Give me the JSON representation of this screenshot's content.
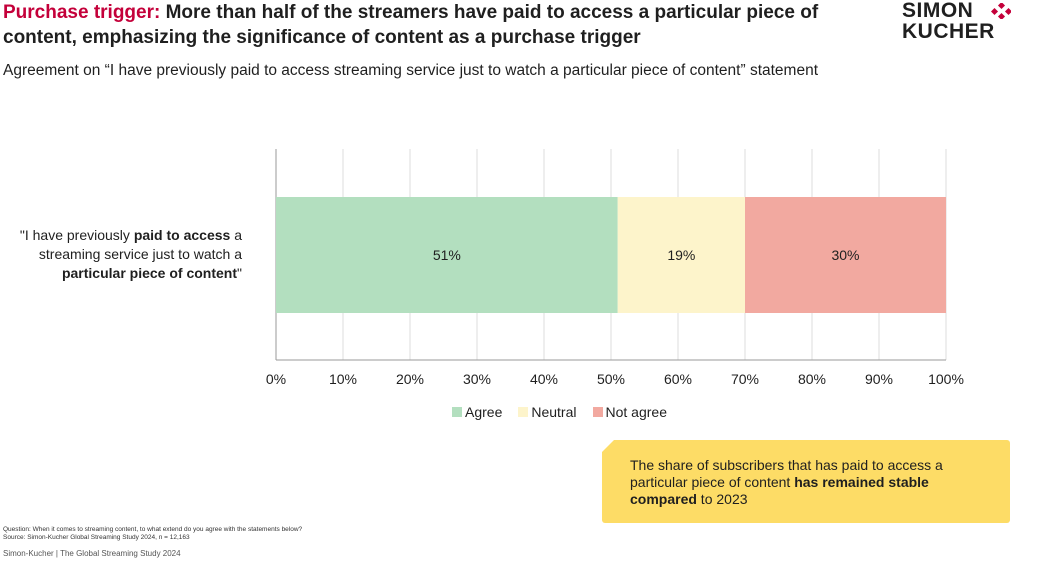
{
  "title": {
    "accent": "Purchase trigger:",
    "rest": " More than half of the streamers have paid to access a particular piece of content, emphasizing the significance of content as a purchase trigger"
  },
  "logo": {
    "line1": "SIMON",
    "line2": "KUCHER",
    "mark_color": "#c4003a"
  },
  "subtitle": "Agreement on “I have previously paid to access streaming service just to watch a particular piece of content” statement",
  "row_label": {
    "p1": "\"I have previously ",
    "b1": "paid to access",
    "p2": " a streaming service just to watch a ",
    "b2": "particular piece of content",
    "p3": "\""
  },
  "chart_data": {
    "type": "bar",
    "orientation": "horizontal",
    "stacked": true,
    "categories": [
      "\"I have previously paid to access a streaming service just to watch a particular piece of content\""
    ],
    "series": [
      {
        "name": "Agree",
        "values": [
          51
        ],
        "label": "51%",
        "color": "#b3dfbf"
      },
      {
        "name": "Neutral",
        "values": [
          19
        ],
        "label": "19%",
        "color": "#fdf4cb"
      },
      {
        "name": "Not agree",
        "values": [
          30
        ],
        "label": "30%",
        "color": "#f2a9a0"
      }
    ],
    "xlim": [
      0,
      100
    ],
    "xticks": [
      "0%",
      "10%",
      "20%",
      "30%",
      "40%",
      "50%",
      "60%",
      "70%",
      "80%",
      "90%",
      "100%"
    ],
    "grid": true,
    "legend": "bottom"
  },
  "callout": {
    "p1": "The share of subscribers that has paid to access a particular piece of content ",
    "b1": "has remained stable compared",
    "p2": " to 2023"
  },
  "footnote": {
    "question": "Question: When it comes to streaming content, to what extend do you agree with the statements below?",
    "source": "Source: Simon-Kucher Global Streaming Study 2024, n = 12,163",
    "brand": "Simon-Kucher | The Global Streaming Study 2024"
  }
}
